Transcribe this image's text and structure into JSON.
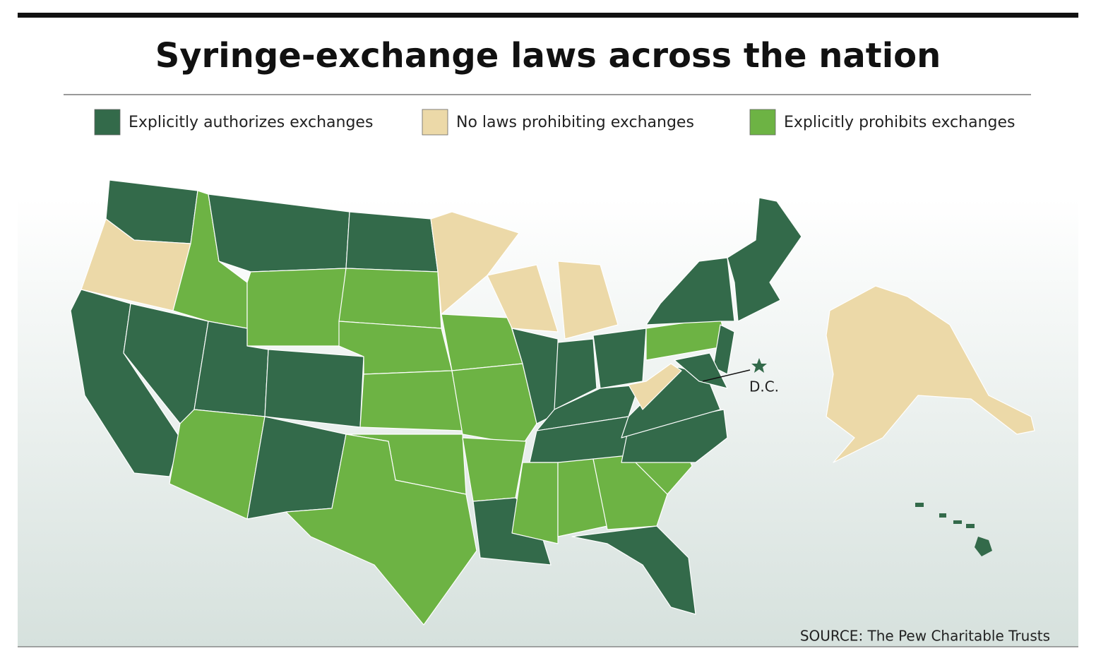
{
  "title": "Syringe-exchange laws across the nation",
  "legend": [
    {
      "label": "Explicitly authorizes exchanges",
      "color": "#336a4a"
    },
    {
      "label": "No laws prohibiting exchanges",
      "color": "#ecd9a8"
    },
    {
      "label": "Explicitly prohibits exchanges",
      "color": "#6db344"
    }
  ],
  "dc_label": "D.C.",
  "source": "SOURCE: The Pew Charitable Trusts"
}
